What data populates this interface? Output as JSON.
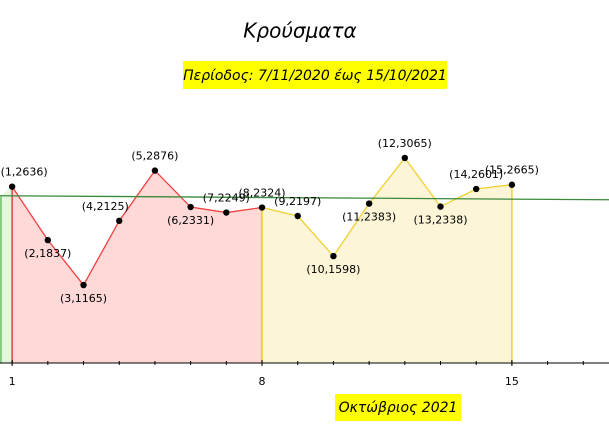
{
  "chart_data": {
    "type": "line",
    "title": "Κρούσματα",
    "subtitle": "Περίοδος: 7/11/2020 έως 15/10/2021",
    "x_label": "Οκτώβριος 2021",
    "x": [
      1,
      2,
      3,
      4,
      5,
      6,
      7,
      8,
      9,
      10,
      11,
      12,
      13,
      14,
      15
    ],
    "values": [
      2636,
      1837,
      1165,
      2125,
      2876,
      2331,
      2249,
      2324,
      2197,
      1598,
      2383,
      3065,
      2338,
      2601,
      2665
    ],
    "value_labels": [
      "(1,2636)",
      "(2,1837)",
      "(3,1165)",
      "(4,2125)",
      "(5,2876)",
      "(6,2331)",
      "(7,2249)",
      "(8,2324)",
      "(9,2197)",
      "(10,1598)",
      "(11,2383)",
      "(12,3065)",
      "(13,2338)",
      "(14,2601)",
      "(15,2665)"
    ],
    "segments": [
      {
        "from": 1,
        "to": 8,
        "color": "#f04040",
        "fill": "#ffd8d8"
      },
      {
        "from": 8,
        "to": 15,
        "color": "#f0d030",
        "fill": "#fdf5d8"
      }
    ],
    "trend_line": {
      "x": [
        0.66,
        17.72
      ],
      "values": [
        2500,
        2440
      ],
      "color": "#3a8a3a"
    },
    "xlim": [
      0.66,
      17.72
    ],
    "ylim": [
      -927,
      5426
    ],
    "xticks": [
      1,
      8,
      15
    ]
  }
}
